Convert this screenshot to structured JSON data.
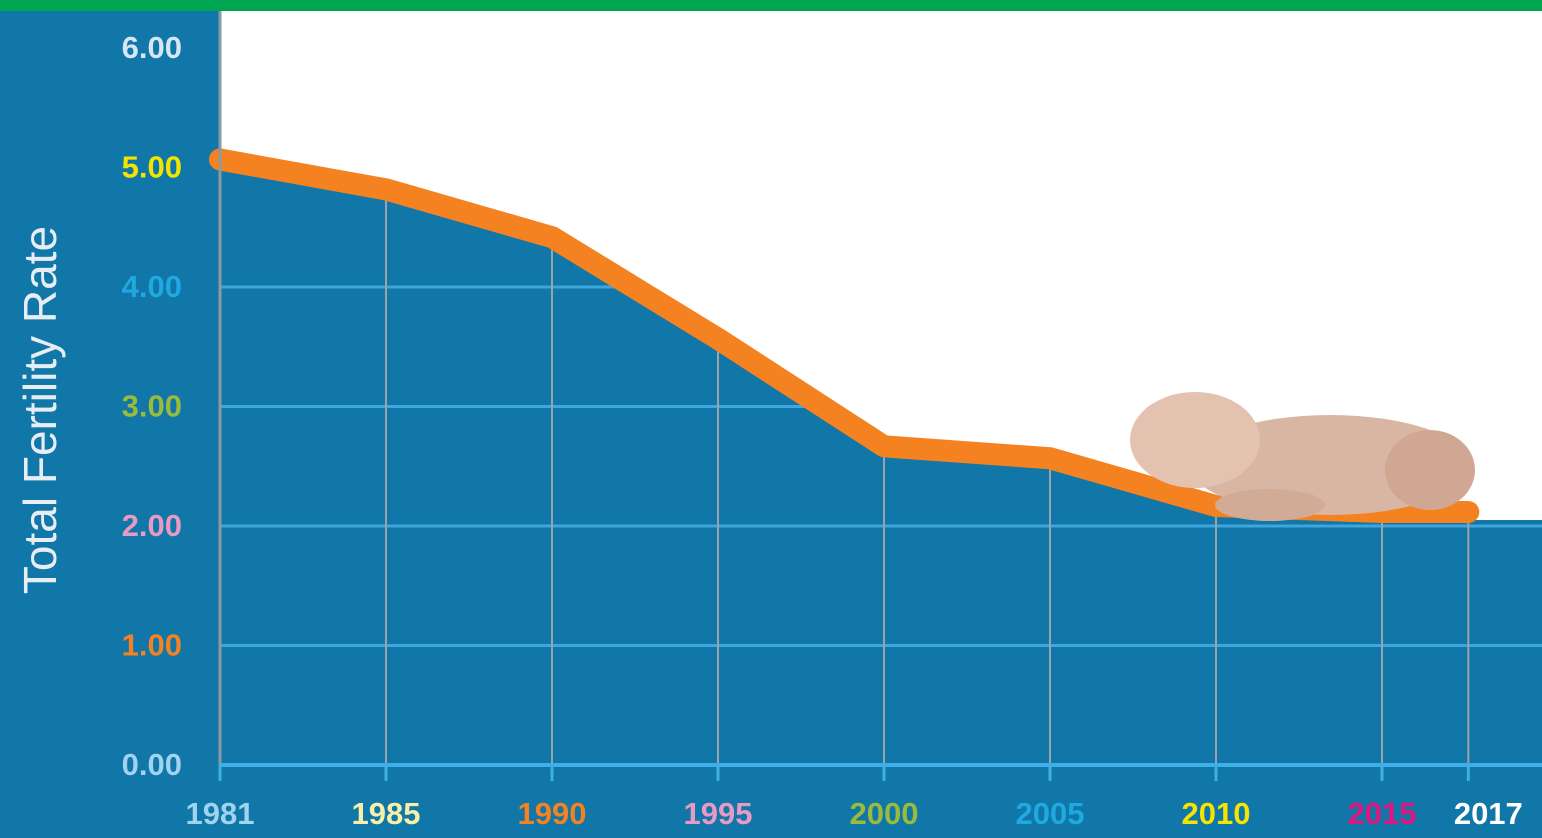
{
  "chart_data": {
    "type": "area",
    "y_axis_label": "Total Fertility Rate",
    "categories": [
      "1981",
      "1985",
      "1990",
      "1995",
      "2000",
      "2005",
      "2010",
      "2015",
      "2017"
    ],
    "series": [
      {
        "name": "Total Fertility Rate",
        "color": "#f58220",
        "values": [
          5.0,
          4.75,
          4.35,
          3.5,
          2.6,
          2.5,
          2.1,
          2.05,
          2.05
        ]
      }
    ],
    "area_color": "#1176a8",
    "ylim": [
      0,
      6
    ],
    "yticks": [
      {
        "value": 0,
        "label": "0.00"
      },
      {
        "value": 1,
        "label": "1.00"
      },
      {
        "value": 2,
        "label": "2.00"
      },
      {
        "value": 3,
        "label": "3.00"
      },
      {
        "value": 4,
        "label": "4.00"
      },
      {
        "value": 5,
        "label": "5.00"
      },
      {
        "value": 6,
        "label": "6.00"
      }
    ],
    "ytick_colors": [
      "#9fd3f0",
      "#f58220",
      "#e89ac4",
      "#9bbb3b",
      "#1fa9e1",
      "#f5e400",
      "#d6e6f2"
    ],
    "xtick_colors": [
      "#9fd3f0",
      "#f6eeaa",
      "#f58220",
      "#e89ac4",
      "#9bbb3b",
      "#1fa9e1",
      "#f5e400",
      "#e0157f",
      "#ffffff"
    ],
    "grid": true
  }
}
